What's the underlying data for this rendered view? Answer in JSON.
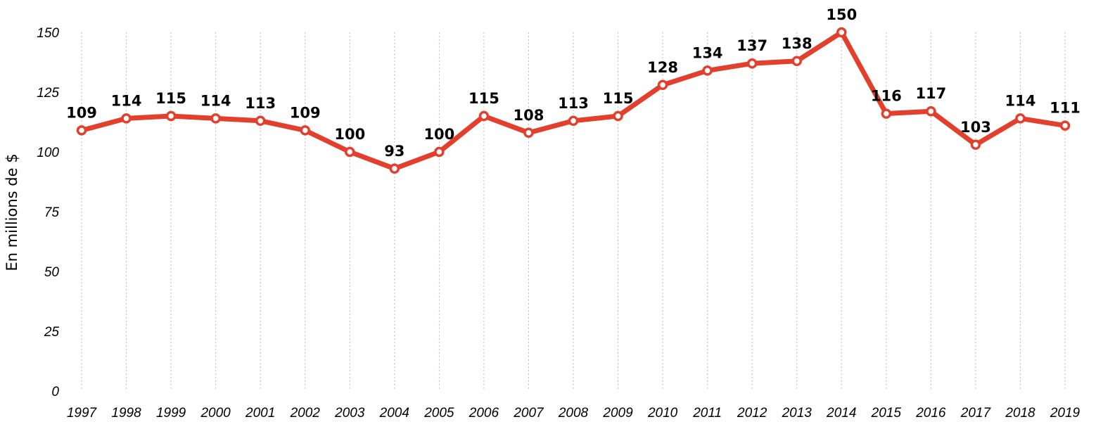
{
  "chart_data": {
    "type": "line",
    "title": "",
    "xlabel": "",
    "ylabel": "En millions de $",
    "x": [
      "1997",
      "1998",
      "1999",
      "2000",
      "2001",
      "2002",
      "2003",
      "2004",
      "2005",
      "2006",
      "2007",
      "2008",
      "2009",
      "2010",
      "2011",
      "2012",
      "2013",
      "2014",
      "2015",
      "2016",
      "2017",
      "2018",
      "2019"
    ],
    "series": [
      {
        "values": [
          109,
          114,
          115,
          114,
          113,
          109,
          100,
          93,
          100,
          115,
          108,
          113,
          115,
          128,
          134,
          137,
          138,
          150,
          116,
          117,
          103,
          114,
          111
        ]
      }
    ],
    "yticks": [
      "0",
      "25",
      "50",
      "75",
      "100",
      "125",
      "150"
    ],
    "ylim": [
      0,
      150
    ],
    "grid": "vertical-dotted",
    "legend": "none",
    "data_labels": true,
    "colors": {
      "line": "#e2402d",
      "marker_fill": "#ffffff",
      "grid": "#bdbdbd"
    }
  }
}
